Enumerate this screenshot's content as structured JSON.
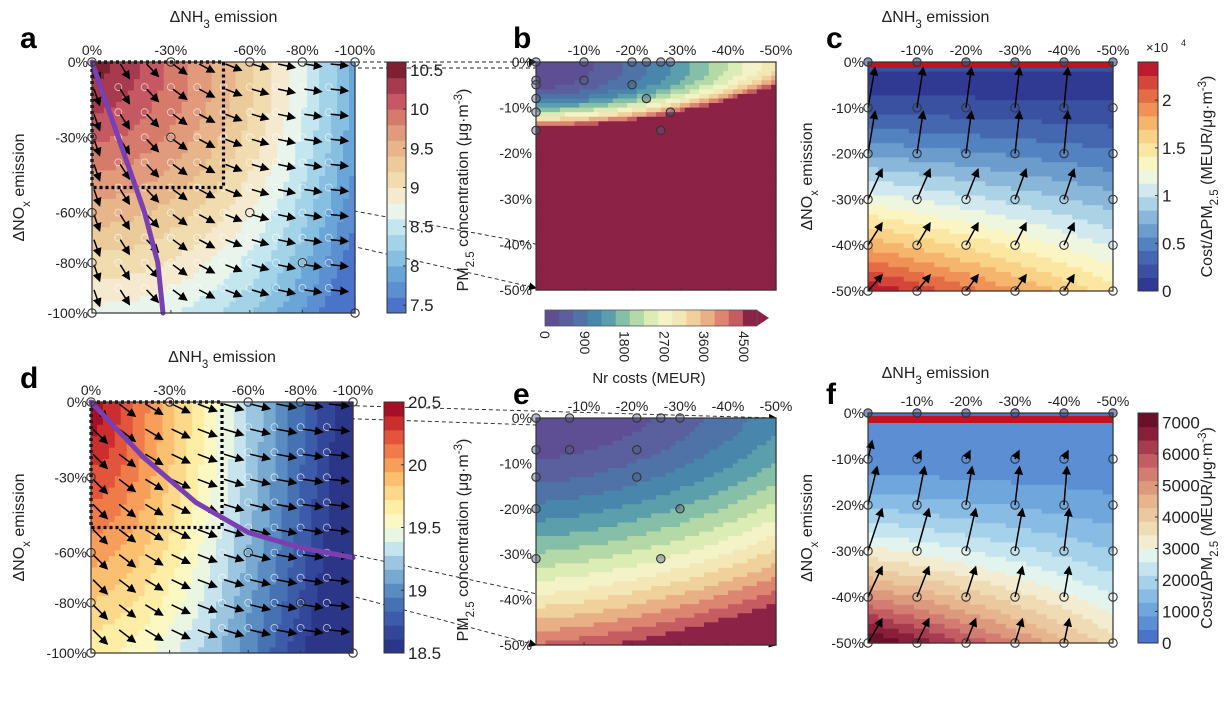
{
  "figure": {
    "shared": {
      "nh3_axis_title": "ΔNH",
      "nh3_sub": "3",
      "nh3_suffix": " emission",
      "nox_axis_title": "ΔNO",
      "nox_sub": "x",
      "nox_suffix": " emission",
      "pm_label_prefix": "PM",
      "pm_label_sub": "2.5",
      "pm_label_suffix": " concentration (μg·m",
      "pm_label_sup": "-3",
      "pm_label_end": ")",
      "cost_label_prefix": "Cost/ΔPM",
      "cost_label_sub": "2.5",
      "cost_label_suffix": " (MEUR/μg·m",
      "cost_label_sup": "-3",
      "cost_label_end": ")",
      "nr_costs_label": "Nr costs (MEUR)"
    }
  },
  "chart_data": [
    {
      "panel": "a",
      "type": "heatmap",
      "subtype": "filled-contour with quiver arrows and optimal path",
      "title": "",
      "xlabel": "ΔNH3 emission",
      "ylabel": "ΔNOx emission",
      "x_ticks": [
        "0%",
        "-30%",
        "-60%",
        "-80%",
        "-100%"
      ],
      "x_tick_values": [
        0,
        -30,
        -60,
        -80,
        -100
      ],
      "y_ticks": [
        "0%",
        "-30%",
        "-60%",
        "-80%",
        "-100%"
      ],
      "y_tick_values": [
        0,
        -30,
        -60,
        -80,
        -100
      ],
      "xlim": [
        0,
        -100
      ],
      "ylim": [
        0,
        -100
      ],
      "colorbar": {
        "label": "PM2.5 concentration (μg·m-3)",
        "ticks": [
          "7.5",
          "8",
          "8.5",
          "9",
          "9.5",
          "10",
          "10.5"
        ],
        "range": [
          7.4,
          10.6
        ],
        "colormap": "RdYlBu_r",
        "colors": [
          "#4a74c9",
          "#5b8fd0",
          "#6aa5d8",
          "#86bfe0",
          "#a3d3e8",
          "#c3e6ef",
          "#e9f5ec",
          "#f5ead0",
          "#f1dcaf",
          "#eccb9b",
          "#e8b48a",
          "#e19a7c",
          "#d67a6c",
          "#c55863",
          "#a73a4e",
          "#7e1f33"
        ],
        "values_corner": {
          "nh3_0_nox_0": 10.5,
          "nh3_-100_nox_0": 7.9,
          "nh3_0_nox_-100": 8.0,
          "nh3_-100_nox_-100": 7.4
        }
      },
      "highlight_box": {
        "x_range": [
          0,
          -50
        ],
        "y_range": [
          0,
          -50
        ],
        "style": "dotted"
      },
      "optimal_path": {
        "color": "#7a3fb0",
        "points": [
          [
            0,
            0
          ],
          [
            -10,
            -30
          ],
          [
            -20,
            -60
          ],
          [
            -25,
            -80
          ],
          [
            -27,
            -100
          ]
        ]
      },
      "marked_points": [
        [
          0,
          0
        ],
        [
          -30,
          0
        ],
        [
          -60,
          0
        ],
        [
          -80,
          0
        ],
        [
          -100,
          0
        ],
        [
          0,
          -30
        ],
        [
          -30,
          -30
        ],
        [
          0,
          -60
        ],
        [
          -60,
          -60
        ],
        [
          0,
          -80
        ],
        [
          -80,
          -80
        ],
        [
          0,
          -100
        ],
        [
          -100,
          -100
        ]
      ]
    },
    {
      "panel": "b",
      "type": "heatmap",
      "subtype": "filled-contour",
      "xlabel": "ΔNH3 emission",
      "ylabel": "ΔNOx emission",
      "x_ticks": [
        "-10%",
        "-20%",
        "-30%",
        "-40%",
        "-50%"
      ],
      "x_tick_values": [
        -10,
        -20,
        -30,
        -40,
        -50
      ],
      "y_ticks": [
        "0%",
        "-10%",
        "-20%",
        "-30%",
        "-40%",
        "-50%"
      ],
      "y_tick_values": [
        0,
        -10,
        -20,
        -30,
        -40,
        -50
      ],
      "xlim": [
        0,
        -50
      ],
      "ylim": [
        0,
        -50
      ],
      "colorbar": {
        "label": "Nr costs (MEUR)",
        "ticks": [
          "0",
          "900",
          "1800",
          "2700",
          "3600",
          "4500"
        ],
        "range": [
          0,
          4800
        ],
        "extend": "max",
        "colormap": "Spectral_r",
        "colors": [
          "#5e4f95",
          "#5a5f9d",
          "#4f73a6",
          "#4886ac",
          "#5b9eac",
          "#86bfa8",
          "#b5d8a7",
          "#dcecb5",
          "#f4f3c8",
          "#f4e7b6",
          "#f0d19b",
          "#e9af85",
          "#dd8570",
          "#c45c62",
          "#8c2346"
        ]
      },
      "values_description": "≈0 MEUR near top-left, rising across the -10% to -15% NOx band to >4500 MEUR for NOx reductions beyond ~-15%",
      "marked_points": [
        [
          0,
          0
        ],
        [
          -10,
          0
        ],
        [
          -20,
          0
        ],
        [
          -23,
          0
        ],
        [
          -26,
          0
        ],
        [
          -28,
          0
        ],
        [
          0,
          -4
        ],
        [
          0,
          -5
        ],
        [
          -10,
          -4
        ],
        [
          -20,
          -5
        ],
        [
          0,
          -8
        ],
        [
          -23,
          -8
        ],
        [
          0,
          -11
        ],
        [
          -28,
          -11
        ],
        [
          0,
          -15
        ],
        [
          -26,
          -15
        ]
      ]
    },
    {
      "panel": "c",
      "type": "heatmap",
      "subtype": "filled-contour with quiver arrows",
      "xlabel": "ΔNH3 emission",
      "ylabel": "ΔNOx emission",
      "x_ticks": [
        "-10%",
        "-20%",
        "-30%",
        "-40%",
        "-50%"
      ],
      "x_tick_values": [
        -10,
        -20,
        -30,
        -40,
        -50
      ],
      "y_ticks": [
        "0%",
        "-10%",
        "-20%",
        "-30%",
        "-40%",
        "-50%"
      ],
      "y_tick_values": [
        0,
        -10,
        -20,
        -30,
        -40,
        -50
      ],
      "xlim": [
        0,
        -50
      ],
      "ylim": [
        0,
        -50
      ],
      "colorbar": {
        "label": "Cost/ΔPM2.5 (MEUR/μg·m-3)",
        "multiplier": "×10^4",
        "ticks": [
          "0",
          "0.5",
          "1",
          "1.5",
          "2"
        ],
        "range": [
          0,
          2.4
        ],
        "colormap": "RdYlBu_r",
        "colors": [
          "#313a92",
          "#3a51a2",
          "#4467b0",
          "#5282bf",
          "#6b9ccb",
          "#8ab7d9",
          "#acd2e6",
          "#d2e8ef",
          "#eef6e0",
          "#fbf5c4",
          "#fbe7a2",
          "#f9d287",
          "#f6b56c",
          "#f09257",
          "#e46d45",
          "#d4453a",
          "#bd1c2e"
        ],
        "values_description": "lowest (~0.2e4) near NOx 0 to -10%; rising to ~2.2e4 at NOx -50%, NH3 0%; top row NOx=0 marked as red line (undefined/high)"
      }
    },
    {
      "panel": "d",
      "type": "heatmap",
      "subtype": "filled-contour with quiver arrows and optimal path",
      "xlabel": "ΔNH3 emission",
      "ylabel": "ΔNOx emission",
      "x_ticks": [
        "0%",
        "-30%",
        "-60%",
        "-80%",
        "-100%"
      ],
      "x_tick_values": [
        0,
        -30,
        -60,
        -80,
        -100
      ],
      "y_ticks": [
        "0%",
        "-30%",
        "-60%",
        "-80%",
        "-100%"
      ],
      "y_tick_values": [
        0,
        -30,
        -60,
        -80,
        -100
      ],
      "xlim": [
        0,
        -100
      ],
      "ylim": [
        0,
        -100
      ],
      "colorbar": {
        "label": "PM2.5 concentration (μg·m-3)",
        "ticks": [
          "18.5",
          "19",
          "19.5",
          "20",
          "20.5"
        ],
        "range": [
          18.5,
          20.5
        ],
        "colormap": "RdYlBu_r",
        "colors": [
          "#2c3689",
          "#33479a",
          "#3c5ca9",
          "#4672b4",
          "#5a8cc2",
          "#78a9d1",
          "#9cc6e0",
          "#c6e3ee",
          "#eaf5e2",
          "#fbf8c4",
          "#fdeda5",
          "#fcd98a",
          "#fbbf70",
          "#f79e5b",
          "#ef7a4a",
          "#e2553c",
          "#cc2d2f",
          "#a50f27"
        ],
        "values_corner": {
          "nh3_0_nox_0": 20.5,
          "nh3_-100_nox_0": 18.6,
          "nh3_0_nox_-100": 19.5,
          "nh3_-100_nox_-100": 18.5
        }
      },
      "highlight_box": {
        "x_range": [
          0,
          -50
        ],
        "y_range": [
          0,
          -50
        ],
        "style": "dotted"
      },
      "optimal_path": {
        "color": "#7a3fb0",
        "points": [
          [
            0,
            0
          ],
          [
            -20,
            -22
          ],
          [
            -40,
            -40
          ],
          [
            -60,
            -52
          ],
          [
            -80,
            -58
          ],
          [
            -100,
            -62
          ]
        ]
      },
      "marked_points": [
        [
          0,
          0
        ],
        [
          -30,
          0
        ],
        [
          -60,
          0
        ],
        [
          -80,
          0
        ],
        [
          -100,
          0
        ],
        [
          0,
          -30
        ],
        [
          0,
          -60
        ],
        [
          -60,
          -60
        ],
        [
          0,
          -80
        ],
        [
          -80,
          -80
        ],
        [
          0,
          -100
        ],
        [
          -100,
          -100
        ]
      ]
    },
    {
      "panel": "e",
      "type": "heatmap",
      "subtype": "filled-contour",
      "xlabel": "ΔNH3 emission",
      "ylabel": "ΔNOx emission",
      "x_ticks": [
        "-10%",
        "-20%",
        "-30%",
        "-40%",
        "-50%"
      ],
      "x_tick_values": [
        -10,
        -20,
        -30,
        -40,
        -50
      ],
      "y_ticks": [
        "0%",
        "-10%",
        "-20%",
        "-30%",
        "-40%",
        "-50%"
      ],
      "y_tick_values": [
        0,
        -10,
        -20,
        -30,
        -40,
        -50
      ],
      "xlim": [
        0,
        -50
      ],
      "ylim": [
        0,
        -50
      ],
      "colorbar_shared_with": "b",
      "values_description": "≈0 MEUR at top, increasing downward through ~2700 MEUR near NOx -35%, to ~4500 MEUR at NOx -50%, NH3 -50%",
      "marked_points": [
        [
          0,
          0
        ],
        [
          -7,
          0
        ],
        [
          -21,
          0
        ],
        [
          -26,
          0
        ],
        [
          -30,
          0
        ],
        [
          0,
          -7
        ],
        [
          -7,
          -7
        ],
        [
          -21,
          -7
        ],
        [
          0,
          -13
        ],
        [
          -21,
          -13
        ],
        [
          0,
          -20
        ],
        [
          -30,
          -20
        ],
        [
          0,
          -31
        ],
        [
          -26,
          -31
        ]
      ]
    },
    {
      "panel": "f",
      "type": "heatmap",
      "subtype": "filled-contour with quiver arrows",
      "xlabel": "ΔNH3 emission",
      "ylabel": "ΔNOx emission",
      "x_ticks": [
        "-10%",
        "-20%",
        "-30%",
        "-40%",
        "-50%"
      ],
      "x_tick_values": [
        -10,
        -20,
        -30,
        -40,
        -50
      ],
      "y_ticks": [
        "0%",
        "-10%",
        "-20%",
        "-30%",
        "-40%",
        "-50%"
      ],
      "y_tick_values": [
        0,
        -10,
        -20,
        -30,
        -40,
        -50
      ],
      "xlim": [
        0,
        -50
      ],
      "ylim": [
        0,
        -50
      ],
      "colorbar": {
        "label": "Cost/ΔPM2.5 (MEUR/μg·m-3)",
        "ticks": [
          "0",
          "1000",
          "2000",
          "3000",
          "4000",
          "5000",
          "6000",
          "7000"
        ],
        "range": [
          0,
          7300
        ],
        "colormap": "RdBu_r-like",
        "colors": [
          "#4a74c9",
          "#5b8ed2",
          "#6fa7dc",
          "#88bce4",
          "#a5d1ea",
          "#c4e5ef",
          "#e3f3ee",
          "#f3ecd0",
          "#efdcb4",
          "#ebc9a0",
          "#e6b48d",
          "#dd997e",
          "#d37c72",
          "#c25d63",
          "#a83b50",
          "#8a1f3a",
          "#6b1028"
        ],
        "values_description": "lowest (~500) near NOx -5%; rising to ~7000 at NOx -50%, NH3 0%; top row NOx=0 marked as red line"
      }
    }
  ]
}
